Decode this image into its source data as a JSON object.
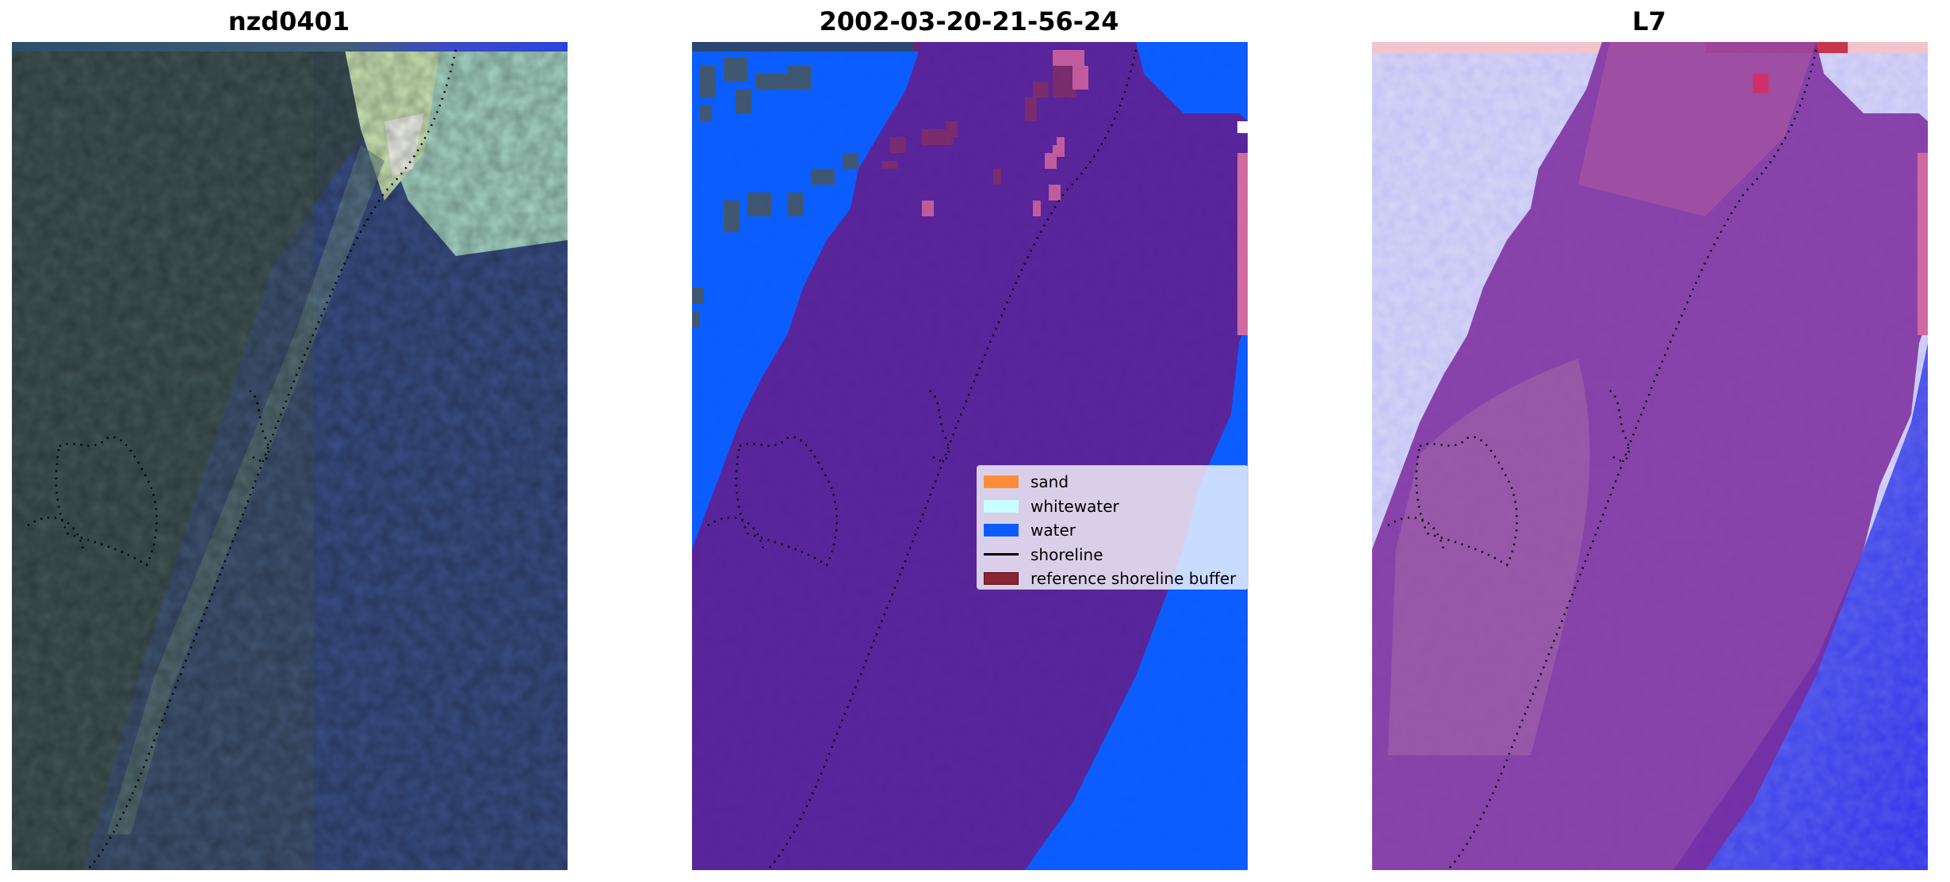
{
  "panels": [
    {
      "title": "nzd0401"
    },
    {
      "title": "2002-03-20-21-56-24"
    },
    {
      "title": "L7"
    }
  ],
  "legend": {
    "items": [
      {
        "label": "sand",
        "color": "#ff8c3a",
        "kind": "patch"
      },
      {
        "label": "whitewater",
        "color": "#c8ffff",
        "kind": "patch"
      },
      {
        "label": "water",
        "color": "#0050ff",
        "kind": "patch"
      },
      {
        "label": "shoreline",
        "color": "#000000",
        "kind": "line"
      },
      {
        "label": "reference shoreline buffer",
        "color": "#7a1e2a",
        "kind": "patch"
      }
    ]
  },
  "colors": {
    "land": "#3a4a5e",
    "water_class": "#0a5cff",
    "buffer_overlay": "#58239a",
    "buffer_overlay_rgb": "#7b2a9c",
    "white_wash": "#c7ecd9"
  }
}
